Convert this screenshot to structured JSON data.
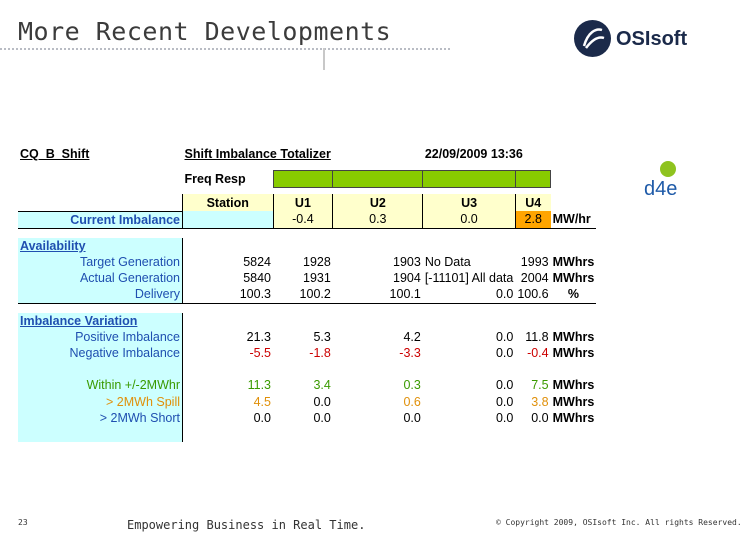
{
  "slide": {
    "title": "More Recent Developments",
    "logo_text": "OSIsoft",
    "page_number": "23",
    "tagline": "Empowering Business in Real Time.",
    "copyright": "© Copyright 2009, OSIsoft Inc. All rights Reserved."
  },
  "report": {
    "name": "CQ_B_Shift",
    "heading": "Shift Imbalance Totalizer",
    "datetime": "22/09/2009 13:36",
    "freq_label": "Freq Resp",
    "logo_label": "d4e",
    "columns": [
      "Station",
      "U1",
      "U2",
      "U3",
      "U4"
    ],
    "current": {
      "label": "Current Imbalance",
      "values": [
        "-0.4",
        "0.3",
        "0.0",
        "2.8"
      ],
      "unit": "MW/hr"
    },
    "availability": {
      "heading": "Availability",
      "rows": [
        {
          "label": "Target Generation",
          "values": [
            "5824",
            "1928",
            "1903",
            "No Data",
            "1993"
          ],
          "unit": "MWhrs"
        },
        {
          "label": "Actual Generation",
          "values": [
            "5840",
            "1931",
            "1904",
            "[-11101] All data",
            "2004"
          ],
          "unit": "MWhrs"
        },
        {
          "label": "Delivery",
          "values": [
            "100.3",
            "100.2",
            "100.1",
            "0.0",
            "100.6"
          ],
          "unit": "%"
        }
      ]
    },
    "imbalance": {
      "heading": "Imbalance Variation",
      "rows": [
        {
          "label": "Positive Imbalance",
          "values": [
            "21.3",
            "5.3",
            "4.2",
            "0.0",
            "11.8"
          ],
          "unit": "MWhrs"
        },
        {
          "label": "Negative Imbalance",
          "values": [
            "-5.5",
            "-1.8",
            "-3.3",
            "0.0",
            "-0.4"
          ],
          "unit": "MWhrs"
        },
        {
          "label": "Within +/-2MWhr",
          "values": [
            "11.3",
            "3.4",
            "0.3",
            "0.0",
            "7.5"
          ],
          "unit": "MWhrs"
        },
        {
          "label": "> 2MWh Spill",
          "values": [
            "4.5",
            "0.0",
            "0.6",
            "0.0",
            "3.8"
          ],
          "unit": "MWhrs"
        },
        {
          "label": "> 2MWh Short",
          "values": [
            "0.0",
            "0.0",
            "0.0",
            "0.0",
            "0.0"
          ],
          "unit": "MWhrs"
        }
      ]
    }
  },
  "colors": {
    "cyan": "#ccffff",
    "yellow": "#ffffcc",
    "green": "#88cc00",
    "orange": "#ffa500"
  }
}
